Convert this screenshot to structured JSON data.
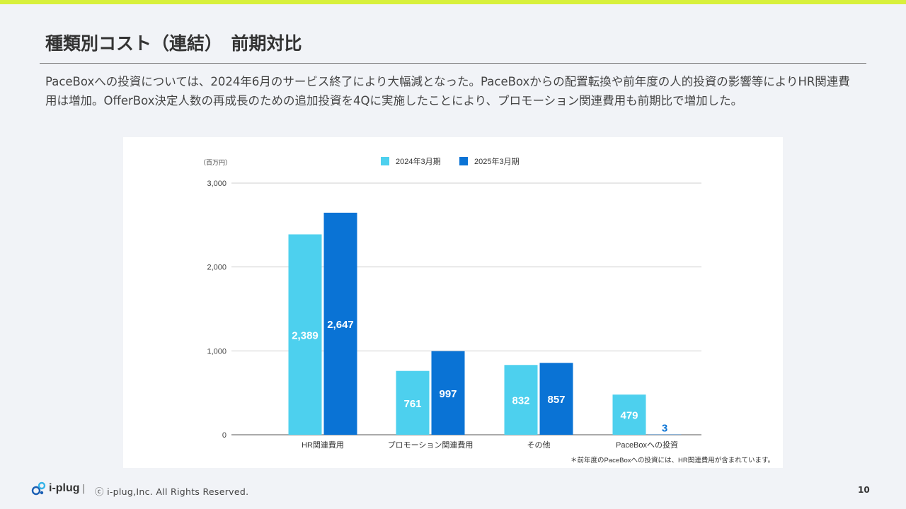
{
  "title": "種類別コスト（連結）　前期対比",
  "description": "PaceBoxへの投資については、2024年6月のサービス終了により大幅減となった。PaceBoxからの配置転換や前年度の人的投資の影響等によりHR関連費用は増加。OfferBox決定人数の再成長のための追加投資を4Qに実施したことにより、プロモーション関連費用も前期比で増加した。",
  "footer": {
    "brand": "i-plug",
    "separator": "|",
    "copyright": "ⓒ i-plug,Inc. All Rights Reserved.",
    "page_number": "10"
  },
  "colors": {
    "accent_bar": "#d8f03c",
    "series_2024": "#4dd0ee",
    "series_2025": "#0a73d5"
  },
  "chart_data": {
    "type": "bar",
    "unit_label": "（百万円）",
    "categories": [
      "HR関連費用",
      "プロモーション関連費用",
      "その他",
      "PaceBoxへの投資"
    ],
    "series": [
      {
        "name": "2024年3月期",
        "values": [
          2389,
          761,
          832,
          479
        ],
        "labels": [
          "2,389",
          "761",
          "832",
          "479"
        ]
      },
      {
        "name": "2025年3月期",
        "values": [
          2647,
          997,
          857,
          3
        ],
        "labels": [
          "2,647",
          "997",
          "857",
          "3"
        ]
      }
    ],
    "yticks": [
      "3,000",
      "2,000",
      "1,000",
      "0"
    ],
    "ytick_values": [
      3000,
      2000,
      1000,
      0
    ],
    "ylim": [
      0,
      3000
    ],
    "grid": true,
    "legend_position": "top",
    "footnote": "＊前年度のPaceBoxへの投資には、HR関連費用が含まれています。"
  }
}
